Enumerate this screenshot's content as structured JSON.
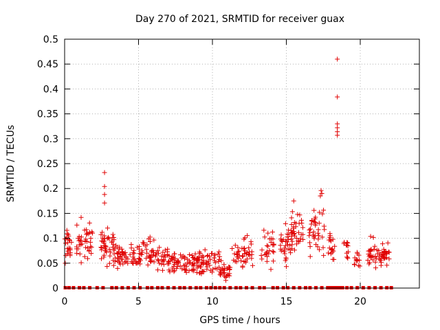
{
  "chart_data": {
    "type": "scatter",
    "title": "Day 270 of 2021, SRMTID for receiver guax",
    "xlabel": "GPS time / hours",
    "ylabel": "SRMTID / TECUs",
    "xlim": [
      0,
      24
    ],
    "ylim": [
      0,
      0.5
    ],
    "x_ticks": [
      0,
      5,
      10,
      15,
      20
    ],
    "x_tick_labels": [
      "0",
      "5",
      "10",
      "15",
      "20"
    ],
    "y_ticks": [
      0,
      0.05,
      0.1,
      0.15,
      0.2,
      0.25,
      0.3,
      0.35,
      0.4,
      0.45,
      0.5
    ],
    "y_tick_labels": [
      "0",
      "0.05",
      "0.1",
      "0.15",
      "0.2",
      "0.25",
      "0.3",
      "0.35",
      "0.4",
      "0.45",
      "0.5"
    ],
    "grid": true,
    "marker": "+",
    "marker_color": "#e00000",
    "clusters": [
      {
        "x0": 0.0,
        "x1": 0.5,
        "ylo": 0.04,
        "yhi": 0.13,
        "n": 24
      },
      {
        "x0": 0.8,
        "x1": 1.9,
        "ylo": 0.04,
        "yhi": 0.15,
        "n": 42
      },
      {
        "x0": 2.4,
        "x1": 3.4,
        "ylo": 0.03,
        "yhi": 0.14,
        "n": 45
      },
      {
        "x0": 3.4,
        "x1": 5.0,
        "ylo": 0.03,
        "yhi": 0.1,
        "n": 55
      },
      {
        "x0": 5.0,
        "x1": 7.0,
        "ylo": 0.02,
        "yhi": 0.11,
        "n": 70
      },
      {
        "x0": 7.0,
        "x1": 9.0,
        "ylo": 0.02,
        "yhi": 0.08,
        "n": 75
      },
      {
        "x0": 9.0,
        "x1": 10.5,
        "ylo": 0.02,
        "yhi": 0.09,
        "n": 55
      },
      {
        "x0": 10.5,
        "x1": 11.2,
        "ylo": 0.01,
        "yhi": 0.06,
        "n": 30
      },
      {
        "x0": 11.2,
        "x1": 12.8,
        "ylo": 0.03,
        "yhi": 0.11,
        "n": 45
      },
      {
        "x0": 13.3,
        "x1": 14.2,
        "ylo": 0.03,
        "yhi": 0.13,
        "n": 28
      },
      {
        "x0": 14.6,
        "x1": 15.3,
        "ylo": 0.03,
        "yhi": 0.14,
        "n": 30
      },
      {
        "x0": 15.3,
        "x1": 16.2,
        "ylo": 0.05,
        "yhi": 0.17,
        "n": 38
      },
      {
        "x0": 16.5,
        "x1": 17.6,
        "ylo": 0.05,
        "yhi": 0.19,
        "n": 38
      },
      {
        "x0": 17.8,
        "x1": 18.3,
        "ylo": 0.05,
        "yhi": 0.13,
        "n": 18
      },
      {
        "x0": 18.8,
        "x1": 19.2,
        "ylo": 0.05,
        "yhi": 0.11,
        "n": 12
      },
      {
        "x0": 19.6,
        "x1": 20.0,
        "ylo": 0.03,
        "yhi": 0.08,
        "n": 14
      },
      {
        "x0": 20.5,
        "x1": 21.3,
        "ylo": 0.02,
        "yhi": 0.12,
        "n": 30
      },
      {
        "x0": 21.3,
        "x1": 22.0,
        "ylo": 0.03,
        "yhi": 0.1,
        "n": 32
      }
    ],
    "outliers": [
      {
        "x": 2.7,
        "y": 0.232
      },
      {
        "x": 2.7,
        "y": 0.204
      },
      {
        "x": 2.7,
        "y": 0.188
      },
      {
        "x": 2.7,
        "y": 0.171
      },
      {
        "x": 17.35,
        "y": 0.196
      },
      {
        "x": 17.4,
        "y": 0.19
      },
      {
        "x": 17.3,
        "y": 0.185
      },
      {
        "x": 15.5,
        "y": 0.175
      },
      {
        "x": 18.45,
        "y": 0.46
      },
      {
        "x": 18.45,
        "y": 0.384
      },
      {
        "x": 18.45,
        "y": 0.33
      },
      {
        "x": 18.45,
        "y": 0.322
      },
      {
        "x": 18.45,
        "y": 0.314
      },
      {
        "x": 18.45,
        "y": 0.307
      }
    ],
    "zero_markers_x": [
      0.05,
      0.3,
      0.6,
      1.0,
      1.3,
      1.7,
      2.2,
      2.6,
      3.2,
      3.5,
      3.9,
      4.3,
      4.7,
      5.1,
      5.6,
      5.9,
      6.3,
      6.6,
      7.0,
      7.4,
      7.8,
      8.1,
      8.5,
      8.9,
      9.2,
      9.6,
      9.9,
      10.2,
      10.5,
      10.8,
      11.2,
      11.6,
      11.9,
      12.3,
      12.7,
      13.2,
      13.5,
      14.1,
      14.4,
      14.8,
      15.1,
      15.5,
      15.9,
      16.3,
      16.6,
      17.0,
      17.4,
      17.8,
      18.0,
      18.2,
      18.4,
      18.6,
      18.8,
      19.1,
      19.4,
      19.8,
      20.2,
      20.6,
      21.0,
      21.4,
      21.8,
      22.1
    ]
  }
}
